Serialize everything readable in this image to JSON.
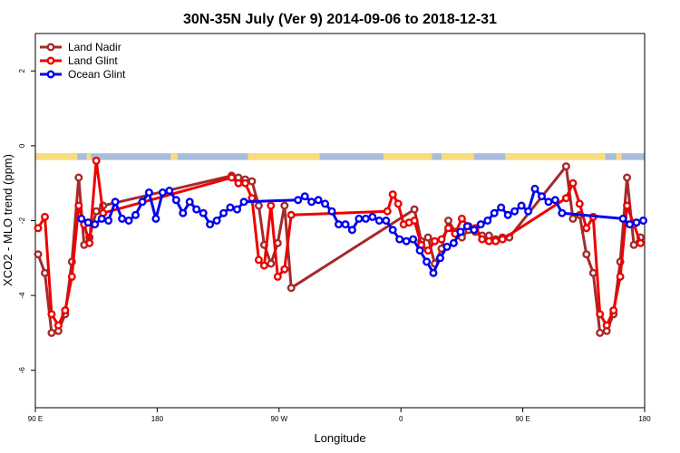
{
  "chart_data": {
    "type": "line",
    "title": "30N-35N July (Ver 9)   2014-09-06 to 2018-12-31",
    "xlabel": "Longitude",
    "ylabel": "XCO2 - MLO trend (ppm)",
    "xlim": [
      90,
      540
    ],
    "ylim": [
      -7,
      3
    ],
    "x_ticks": [
      90,
      180,
      270,
      360,
      450,
      540
    ],
    "x_tick_labels": [
      "90 E",
      "180",
      "90 W",
      "0",
      "90 E",
      "180"
    ],
    "y_ticks": [
      -6,
      -4,
      -2,
      0,
      2
    ],
    "y_tick_labels": [
      "-6",
      "-4",
      "-2",
      "0",
      "2"
    ],
    "grid": false,
    "legend_position": "top-left",
    "land_ocean_strip": {
      "y_top": -0.2,
      "y_bottom": -0.38,
      "ocean_color": "#a7bddb",
      "land_color": "#f9dc7e",
      "land_segments": [
        [
          90,
          121
        ],
        [
          128,
          131
        ],
        [
          190,
          195
        ],
        [
          247,
          300
        ],
        [
          347,
          383
        ],
        [
          390,
          414
        ],
        [
          437,
          511
        ],
        [
          519,
          523
        ]
      ]
    },
    "series": [
      {
        "name": "Land Nadir",
        "color": "#a52a2a",
        "x": [
          92,
          97,
          102,
          107,
          112,
          117,
          122,
          126,
          130,
          135,
          140,
          235,
          240,
          245,
          250,
          255,
          259,
          264,
          269,
          274,
          279,
          370,
          375,
          380,
          385,
          390,
          395,
          400,
          405,
          410,
          415,
          420,
          425,
          430,
          435,
          440,
          482,
          487,
          492,
          497,
          502,
          507,
          512,
          517,
          522,
          527,
          532,
          537
        ],
        "y": [
          -2.9,
          -3.4,
          -5.0,
          -4.95,
          -4.5,
          -3.1,
          -0.85,
          -2.65,
          -2.45,
          -1.75,
          -1.6,
          -0.8,
          -0.85,
          -0.9,
          -0.95,
          -1.6,
          -2.65,
          -3.15,
          -2.6,
          -1.6,
          -3.8,
          -1.7,
          -2.55,
          -2.45,
          -3.15,
          -2.75,
          -2.0,
          -2.3,
          -2.45,
          -2.25,
          -2.3,
          -2.4,
          -2.4,
          -2.5,
          -2.45,
          -2.45,
          -0.55,
          -1.95,
          -1.85,
          -2.9,
          -3.4,
          -5.0,
          -4.95,
          -4.5,
          -3.1,
          -0.85,
          -2.65,
          -2.45
        ]
      },
      {
        "name": "Land Glint",
        "color": "#ee0000",
        "x": [
          92,
          97,
          102,
          107,
          112,
          117,
          122,
          126,
          130,
          135,
          140,
          235,
          240,
          245,
          250,
          255,
          259,
          264,
          269,
          274,
          279,
          350,
          354,
          358,
          362,
          366,
          370,
          375,
          380,
          385,
          390,
          395,
          400,
          405,
          410,
          415,
          420,
          425,
          430,
          435,
          482,
          487,
          492,
          497,
          502,
          507,
          512,
          517,
          522,
          527,
          532,
          537
        ],
        "y": [
          -2.2,
          -1.9,
          -4.5,
          -4.8,
          -4.4,
          -3.5,
          -1.6,
          -2.1,
          -2.6,
          -0.4,
          -1.8,
          -0.85,
          -1.0,
          -1.0,
          -1.4,
          -3.05,
          -3.2,
          -1.6,
          -3.5,
          -3.3,
          -1.85,
          -1.75,
          -1.3,
          -1.55,
          -2.1,
          -2.05,
          -2.0,
          -2.65,
          -2.8,
          -2.55,
          -2.5,
          -2.2,
          -2.35,
          -1.95,
          -2.15,
          -2.2,
          -2.5,
          -2.55,
          -2.55,
          -2.5,
          -1.4,
          -1.0,
          -1.55,
          -2.2,
          -1.9,
          -4.5,
          -4.8,
          -4.4,
          -3.5,
          -1.6,
          -2.1,
          -2.6
        ]
      },
      {
        "name": "Ocean Glint",
        "color": "#0000ee",
        "x": [
          124,
          129,
          134,
          139,
          144,
          149,
          154,
          159,
          164,
          169,
          174,
          179,
          184,
          189,
          194,
          199,
          204,
          209,
          214,
          219,
          224,
          229,
          234,
          239,
          244,
          284,
          289,
          294,
          299,
          304,
          309,
          314,
          319,
          324,
          329,
          334,
          339,
          344,
          349,
          354,
          359,
          364,
          369,
          374,
          379,
          384,
          389,
          394,
          399,
          404,
          409,
          414,
          419,
          424,
          429,
          434,
          439,
          444,
          449,
          454,
          459,
          464,
          469,
          474,
          479,
          524,
          529,
          534,
          539
        ],
        "y": [
          -1.95,
          -2.05,
          -2.1,
          -1.95,
          -2.0,
          -1.5,
          -1.95,
          -2.0,
          -1.85,
          -1.5,
          -1.25,
          -1.95,
          -1.25,
          -1.2,
          -1.45,
          -1.8,
          -1.5,
          -1.7,
          -1.8,
          -2.1,
          -2.0,
          -1.8,
          -1.65,
          -1.7,
          -1.5,
          -1.45,
          -1.35,
          -1.5,
          -1.45,
          -1.55,
          -1.75,
          -2.1,
          -2.1,
          -2.25,
          -1.95,
          -1.95,
          -1.9,
          -2.0,
          -2.0,
          -2.25,
          -2.5,
          -2.55,
          -2.5,
          -2.8,
          -3.1,
          -3.4,
          -3.0,
          -2.7,
          -2.6,
          -2.3,
          -2.15,
          -2.25,
          -2.1,
          -2.0,
          -1.8,
          -1.65,
          -1.85,
          -1.75,
          -1.6,
          -1.75,
          -1.15,
          -1.35,
          -1.5,
          -1.45,
          -1.8,
          -1.95,
          -2.1,
          -2.05,
          -2.0
        ]
      }
    ]
  }
}
